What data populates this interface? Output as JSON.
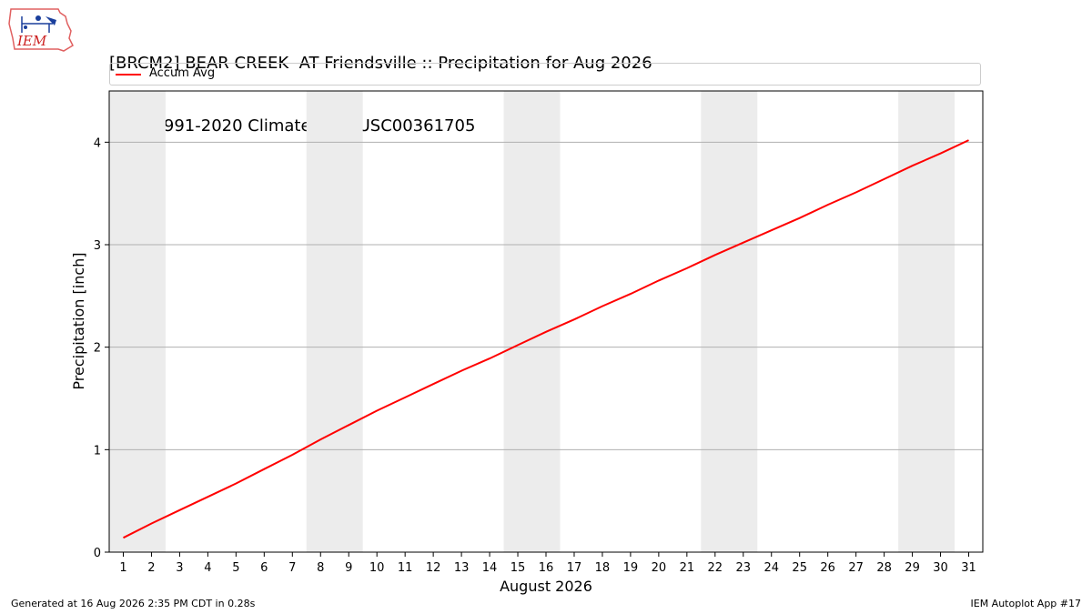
{
  "header": {
    "title_line1": "[BRCM2] BEAR CREEK  AT Friendsville :: Precipitation for Aug 2026",
    "title_line2": "NCEI 1991-2020 Climate Site: USC00361705"
  },
  "logo": {
    "text": "IEM"
  },
  "footer": {
    "generated": "Generated at 16 Aug 2026 2:35 PM CDT in 0.28s",
    "app": "IEM Autoplot App #17"
  },
  "colors": {
    "line": "#ff0000",
    "weekend_band": "#ececec",
    "grid": "#b0b0b0"
  },
  "chart_data": {
    "type": "line",
    "xlabel": "August 2026",
    "ylabel": "Precipitation [inch]",
    "xlim": [
      0.5,
      31.5
    ],
    "ylim": [
      0,
      4.5
    ],
    "yticks": [
      0,
      1,
      2,
      3,
      4
    ],
    "grid": "horizontal",
    "legend_placement": "top",
    "categories": [
      "1",
      "2",
      "3",
      "4",
      "5",
      "6",
      "7",
      "8",
      "9",
      "10",
      "11",
      "12",
      "13",
      "14",
      "15",
      "16",
      "17",
      "18",
      "19",
      "20",
      "21",
      "22",
      "23",
      "24",
      "25",
      "26",
      "27",
      "28",
      "29",
      "30",
      "31"
    ],
    "shaded_day_ranges": [
      [
        1,
        2
      ],
      [
        8,
        9
      ],
      [
        15,
        16
      ],
      [
        22,
        23
      ],
      [
        29,
        30
      ]
    ],
    "series": [
      {
        "name": "Accum Avg",
        "x": [
          1,
          2,
          3,
          4,
          5,
          6,
          7,
          8,
          9,
          10,
          11,
          12,
          13,
          14,
          15,
          16,
          17,
          18,
          19,
          20,
          21,
          22,
          23,
          24,
          25,
          26,
          27,
          28,
          29,
          30,
          31
        ],
        "values": [
          0.14,
          0.28,
          0.41,
          0.54,
          0.67,
          0.81,
          0.95,
          1.1,
          1.24,
          1.38,
          1.51,
          1.64,
          1.77,
          1.89,
          2.02,
          2.15,
          2.27,
          2.4,
          2.52,
          2.65,
          2.77,
          2.9,
          3.02,
          3.14,
          3.26,
          3.39,
          3.51,
          3.64,
          3.77,
          3.89,
          4.02
        ]
      }
    ]
  }
}
